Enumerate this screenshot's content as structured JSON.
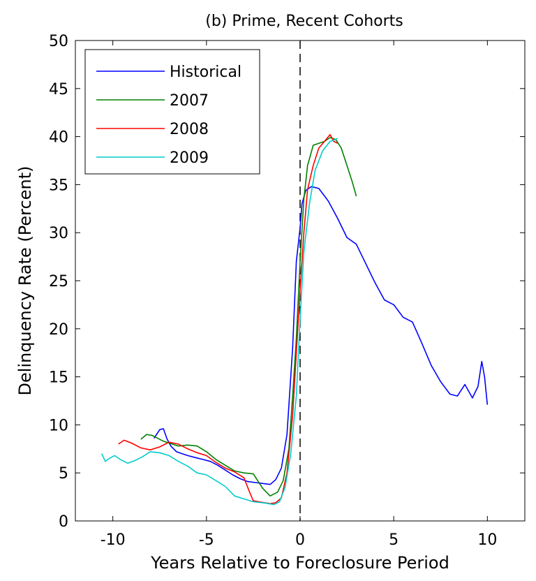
{
  "chart_data": {
    "type": "line",
    "title": "(b) Prime, Recent Cohorts",
    "xlabel": "Years Relative to Foreclosure Period",
    "ylabel": "Delinquency Rate (Percent)",
    "xlim": [
      -12,
      12
    ],
    "ylim": [
      0,
      50
    ],
    "xticks": [
      -10,
      -5,
      0,
      5,
      10
    ],
    "xtick_labels": [
      "-10",
      "-5",
      "0",
      "5",
      "10"
    ],
    "yticks": [
      0,
      5,
      10,
      15,
      20,
      25,
      30,
      35,
      40,
      45,
      50
    ],
    "ytick_labels": [
      "0",
      "5",
      "10",
      "15",
      "20",
      "25",
      "30",
      "35",
      "40",
      "45",
      "50"
    ],
    "grid": false,
    "legend_position": "top-left",
    "reference_line": {
      "x": 0,
      "style": "dashed",
      "color": "#000000"
    },
    "series": [
      {
        "name": "Historical",
        "color": "#0000ff",
        "x": [
          -7.8,
          -7.5,
          -7.3,
          -7.1,
          -6.9,
          -6.6,
          -6.3,
          -6.0,
          -5.6,
          -5.2,
          -4.8,
          -4.4,
          -4.0,
          -3.6,
          -3.2,
          -2.8,
          -2.4,
          -2.0,
          -1.6,
          -1.3,
          -1.0,
          -0.7,
          -0.4,
          -0.2,
          0.0,
          0.1,
          0.3,
          0.6,
          1.0,
          1.5,
          2.0,
          2.5,
          3.0,
          3.5,
          4.0,
          4.5,
          5.0,
          5.5,
          6.0,
          6.5,
          7.0,
          7.5,
          8.0,
          8.4,
          8.8,
          9.2,
          9.5,
          9.7,
          9.85,
          10.0
        ],
        "y": [
          8.6,
          9.5,
          9.6,
          8.5,
          7.8,
          7.2,
          7.0,
          6.8,
          6.6,
          6.4,
          6.2,
          5.8,
          5.3,
          4.8,
          4.4,
          4.1,
          4.0,
          3.9,
          3.8,
          4.3,
          5.5,
          9.0,
          18.0,
          27.0,
          30.5,
          33.0,
          34.4,
          34.8,
          34.6,
          33.3,
          31.5,
          29.5,
          28.8,
          26.8,
          24.8,
          23.0,
          22.5,
          21.2,
          20.7,
          18.5,
          16.2,
          14.5,
          13.2,
          13.0,
          14.2,
          12.8,
          14.0,
          16.6,
          15.0,
          12.1
        ]
      },
      {
        "name": "2007",
        "color": "#008000",
        "x": [
          -8.5,
          -8.2,
          -7.9,
          -7.6,
          -7.3,
          -7.0,
          -6.5,
          -6.0,
          -5.5,
          -5.0,
          -4.5,
          -4.0,
          -3.5,
          -3.0,
          -2.5,
          -2.0,
          -1.6,
          -1.2,
          -0.9,
          -0.6,
          -0.4,
          -0.2,
          0.0,
          0.2,
          0.4,
          0.7,
          1.0,
          1.3,
          1.6,
          1.9,
          2.2,
          2.5,
          2.8,
          3.0
        ],
        "y": [
          8.5,
          9.0,
          8.9,
          8.6,
          8.3,
          8.1,
          7.8,
          7.9,
          7.8,
          7.2,
          6.4,
          5.8,
          5.2,
          5.0,
          4.9,
          3.4,
          2.6,
          3.0,
          4.2,
          7.5,
          13.0,
          19.0,
          27.0,
          33.5,
          37.0,
          39.1,
          39.3,
          39.5,
          39.9,
          39.7,
          38.8,
          37.0,
          35.2,
          33.8
        ]
      },
      {
        "name": "2008",
        "color": "#ff0000",
        "x": [
          -9.7,
          -9.4,
          -9.0,
          -8.5,
          -8.0,
          -7.5,
          -7.0,
          -6.5,
          -6.0,
          -5.5,
          -5.0,
          -4.5,
          -4.0,
          -3.5,
          -3.0,
          -2.7,
          -2.5,
          -2.2,
          -1.9,
          -1.6,
          -1.3,
          -1.0,
          -0.7,
          -0.4,
          -0.2,
          0.0,
          0.2,
          0.4,
          0.7,
          1.0,
          1.3,
          1.6,
          1.8,
          2.0
        ],
        "y": [
          8.0,
          8.4,
          8.1,
          7.6,
          7.4,
          7.7,
          8.2,
          8.0,
          7.5,
          7.1,
          6.8,
          6.1,
          5.5,
          5.1,
          4.5,
          3.0,
          2.1,
          2.0,
          1.9,
          1.8,
          1.9,
          2.4,
          5.0,
          11.0,
          17.5,
          24.0,
          30.0,
          34.5,
          37.0,
          38.8,
          39.5,
          40.2,
          39.5,
          39.3
        ]
      },
      {
        "name": "2009",
        "color": "#00cccc",
        "x": [
          -10.6,
          -10.4,
          -10.2,
          -9.9,
          -9.6,
          -9.2,
          -8.8,
          -8.4,
          -8.0,
          -7.5,
          -7.0,
          -6.5,
          -6.0,
          -5.5,
          -5.0,
          -4.5,
          -4.0,
          -3.5,
          -3.0,
          -2.5,
          -2.0,
          -1.7,
          -1.4,
          -1.1,
          -0.8,
          -0.5,
          -0.2,
          0.0,
          0.2,
          0.5,
          0.8,
          1.2,
          1.6,
          2.0
        ],
        "y": [
          7.0,
          6.2,
          6.5,
          6.8,
          6.4,
          6.0,
          6.3,
          6.7,
          7.2,
          7.1,
          6.8,
          6.2,
          5.7,
          5.0,
          4.8,
          4.2,
          3.6,
          2.6,
          2.3,
          2.0,
          1.9,
          1.8,
          1.7,
          2.0,
          3.5,
          7.0,
          13.0,
          21.0,
          28.0,
          33.0,
          36.5,
          38.5,
          39.5,
          39.8
        ]
      }
    ]
  }
}
